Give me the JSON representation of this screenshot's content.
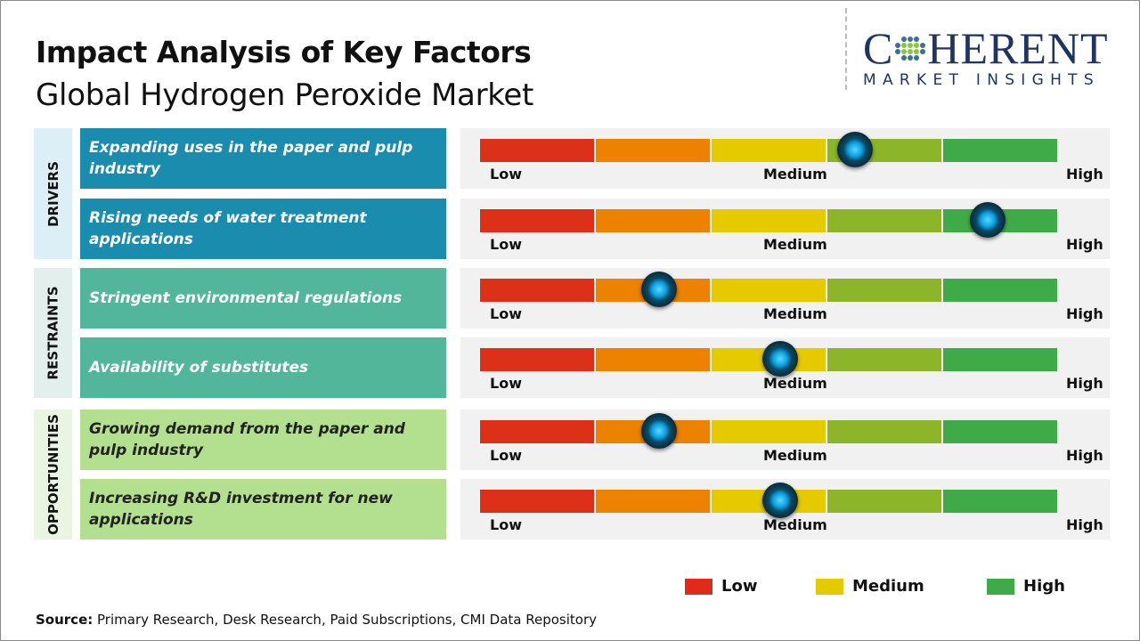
{
  "header": {
    "title": "Impact Analysis of Key Factors",
    "subtitle": "Global Hydrogen Peroxide Market"
  },
  "logo": {
    "main_left": "C",
    "main_right": "HERENT",
    "sub": "MARKET INSIGHTS"
  },
  "chart_data": {
    "type": "table",
    "scale_labels": [
      "Low",
      "Medium",
      "High"
    ],
    "segment_colors": [
      "#dd3018",
      "#ec8200",
      "#e6ca00",
      "#8db52a",
      "#3fab48"
    ],
    "groups": [
      {
        "name": "DRIVERS",
        "color": "#1a8cae",
        "text_color": "#ffffff",
        "side_bg": "#ddeff6",
        "factors": [
          {
            "label": "Expanding uses in the paper and pulp industry",
            "impact": 0.65
          },
          {
            "label": "Rising needs of water treatment applications",
            "impact": 0.88
          }
        ]
      },
      {
        "name": "RESTRAINTS",
        "color": "#52b69a",
        "text_color": "#ffffff",
        "side_bg": "#e2efec",
        "factors": [
          {
            "label": "Stringent environmental regulations",
            "impact": 0.31
          },
          {
            "label": "Availability of substitutes",
            "impact": 0.52
          }
        ]
      },
      {
        "name": "OPPORTUNITIES",
        "color": "#b3e08e",
        "text_color": "#222222",
        "side_bg": "#e9f4e1",
        "factors": [
          {
            "label": "Growing demand from the paper and pulp industry",
            "impact": 0.31
          },
          {
            "label": "Increasing R&D investment for new applications",
            "impact": 0.52
          }
        ]
      }
    ],
    "legend": [
      {
        "label": "Low",
        "color": "#e02a1a"
      },
      {
        "label": "Medium",
        "color": "#e6ca00"
      },
      {
        "label": "High",
        "color": "#3fab48"
      }
    ]
  },
  "source": {
    "label": "Source:",
    "text": " Primary Research, Desk Research, Paid Subscriptions, CMI Data Repository"
  }
}
